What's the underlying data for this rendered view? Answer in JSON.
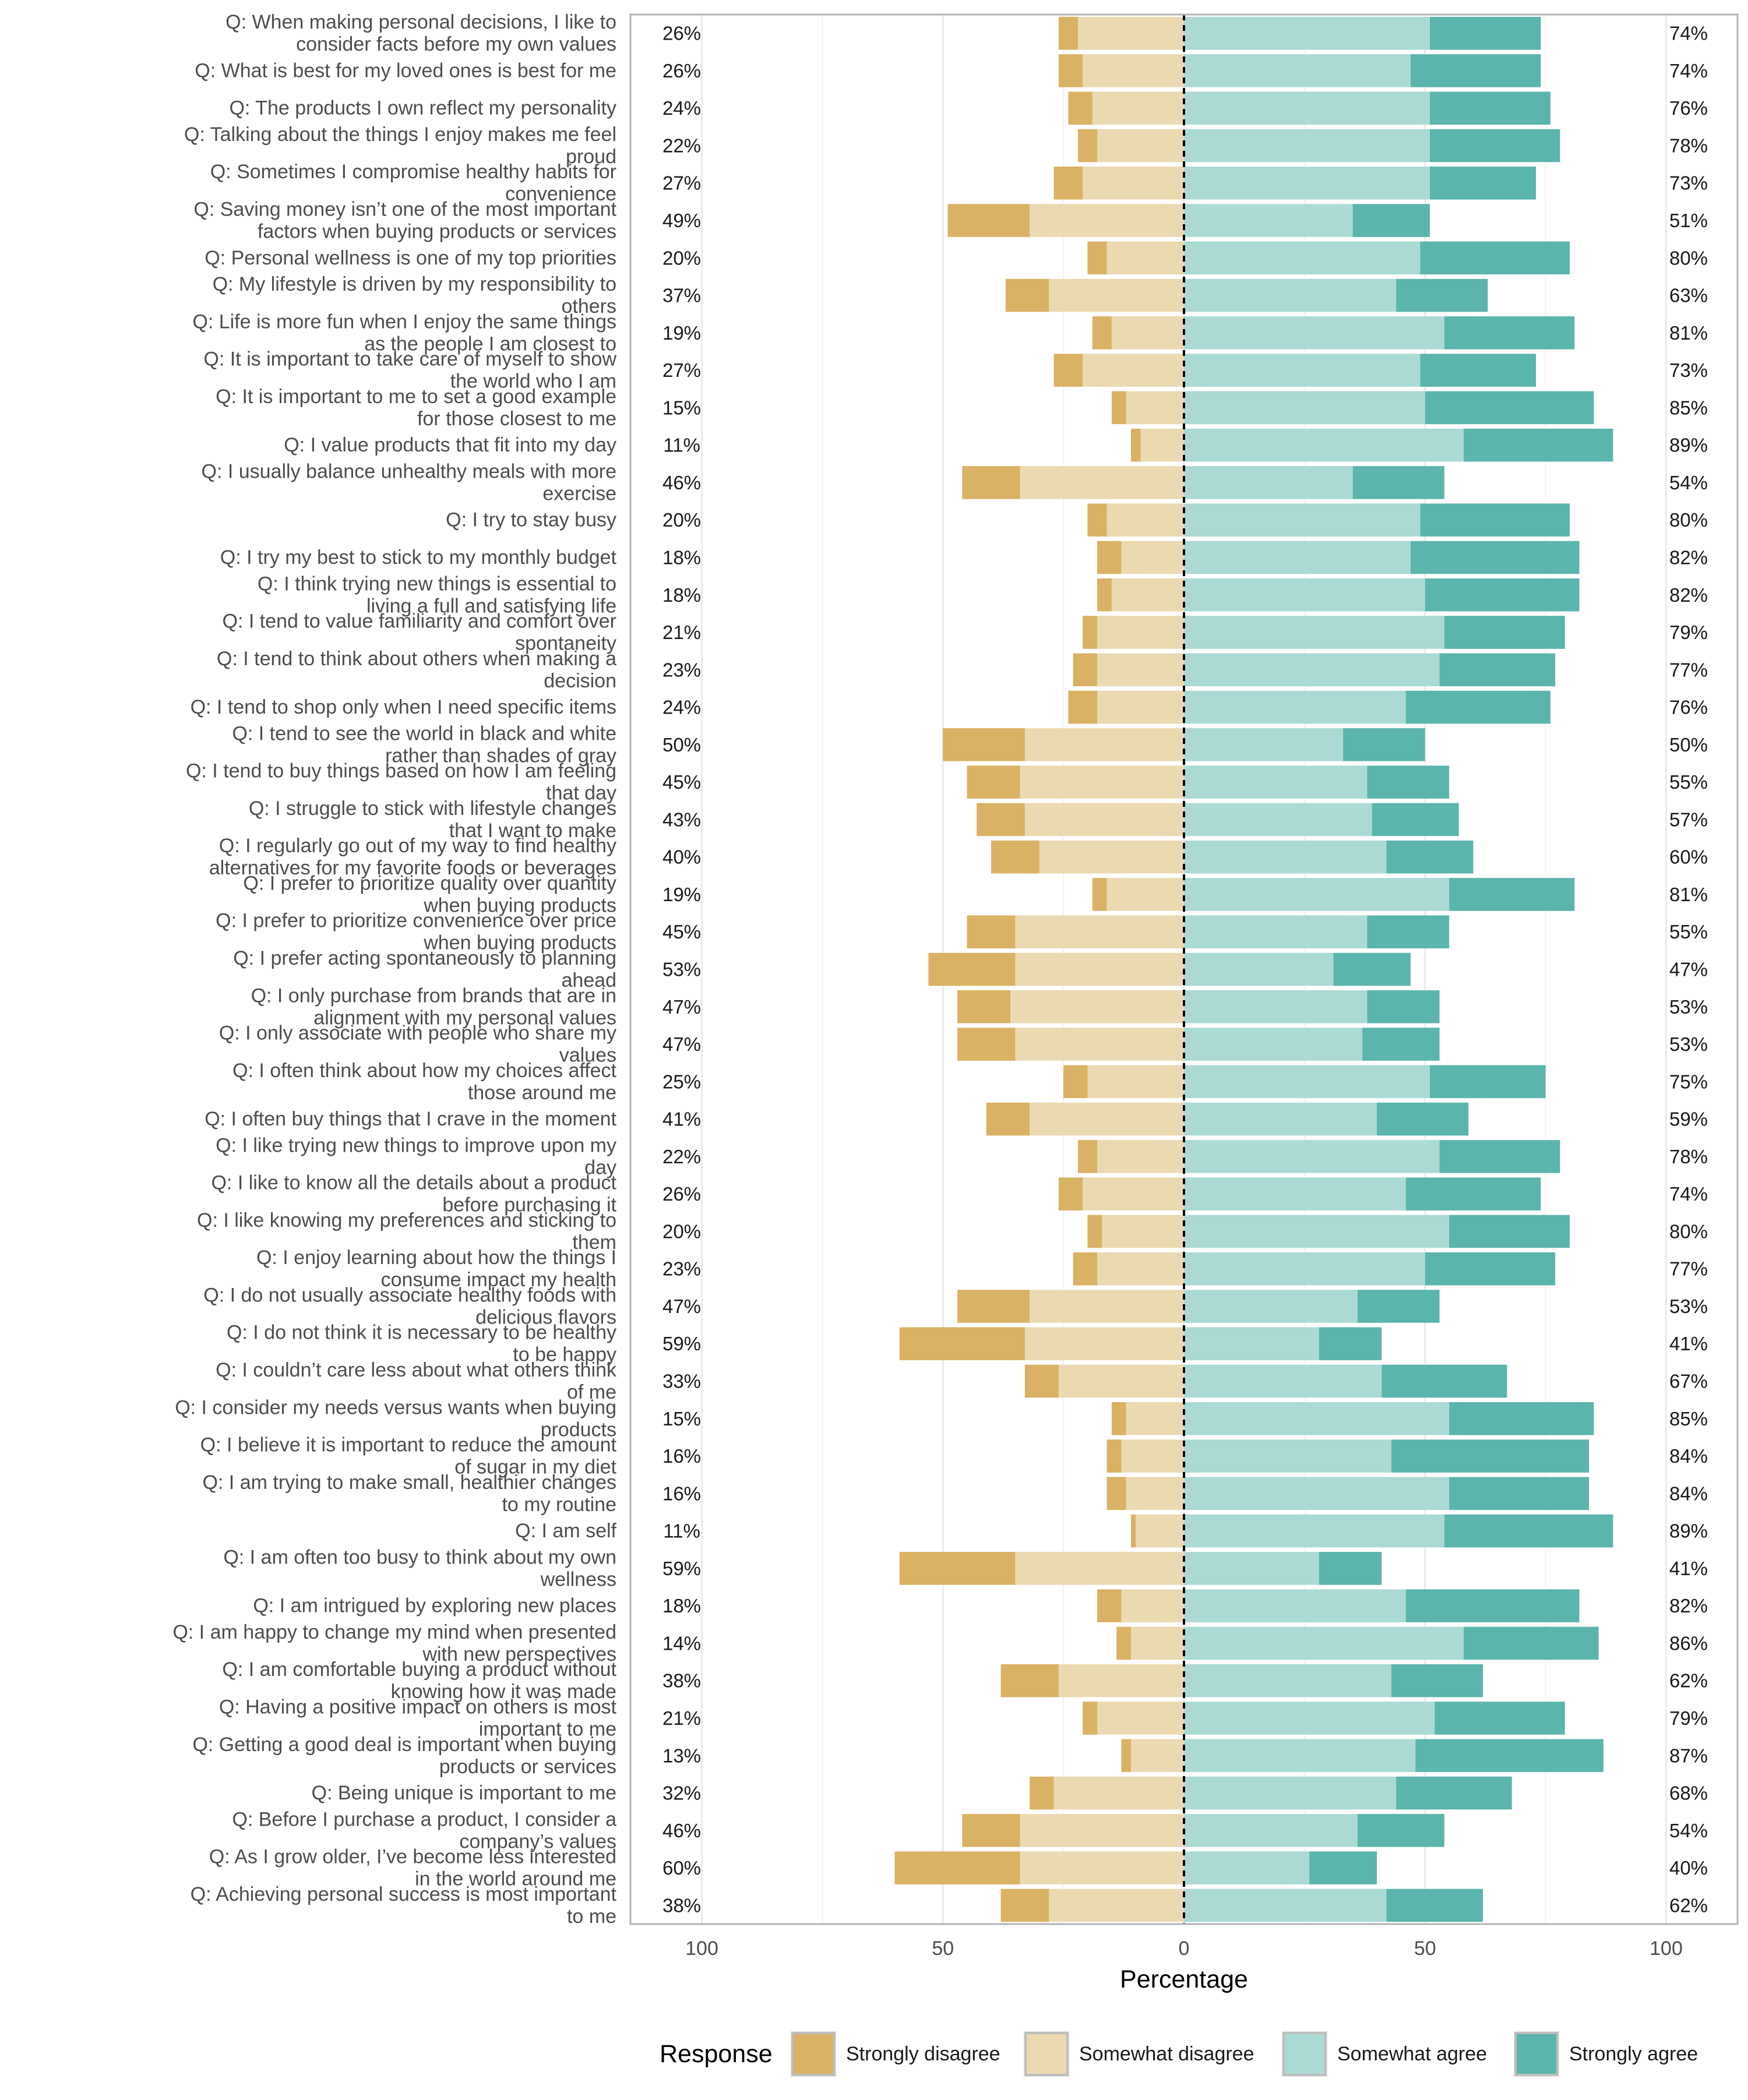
{
  "chart_data": {
    "type": "bar",
    "orientation": "horizontal",
    "stacked": "diverging",
    "title": "",
    "xlabel": "Percentage",
    "ylabel": "",
    "xlim": [
      -100,
      100
    ],
    "x_ticks": [
      -100,
      -50,
      0,
      50,
      100
    ],
    "x_tick_labels": [
      "100",
      "50",
      "0",
      "50",
      "100"
    ],
    "grid": true,
    "legend": {
      "title": "Response",
      "position": "bottom",
      "items": [
        {
          "name": "Strongly disagree",
          "color": "#D9B265"
        },
        {
          "name": "Somewhat disagree",
          "color": "#EBD9B2"
        },
        {
          "name": "Somewhat agree",
          "color": "#ABDAD4"
        },
        {
          "name": "Strongly agree",
          "color": "#5BB5AC"
        }
      ]
    },
    "categories": [
      "Q: When making personal decisions, I like to consider facts before my own values",
      "Q: What is best for my loved ones is best for me",
      "Q: The products I own reflect my personality",
      "Q: Talking about the things I enjoy makes me feel proud",
      "Q: Sometimes I compromise healthy habits for convenience",
      "Q: Saving money isn’t one of the most important factors when buying products or services",
      "Q: Personal wellness is one of my top priorities",
      "Q: My lifestyle is driven by my responsibility to others",
      "Q: Life is more fun when I enjoy the same things as the people I am closest to",
      "Q: It is important to take care of myself to show the world who I am",
      "Q: It is important to me to set a good example for those closest to me",
      "Q: I value products that fit into my day",
      "Q: I usually balance unhealthy meals with more exercise",
      "Q: I try to stay busy",
      "Q: I try my best to stick to my monthly budget",
      "Q: I think trying new things is essential to living a full and satisfying life",
      "Q: I tend to value familiarity and comfort over spontaneity",
      "Q: I tend to think about others when making a decision",
      "Q: I tend to shop only when I need specific items",
      "Q: I tend to see the world in black and white rather than shades of gray",
      "Q: I tend to buy things based on how I am feeling that day",
      "Q: I struggle to stick with lifestyle changes that I want to make",
      "Q: I regularly go out of my way to find healthy alternatives for my favorite foods or beverages",
      "Q: I prefer to prioritize quality over quantity when buying products",
      "Q: I prefer to prioritize convenience over price when buying products",
      "Q: I prefer acting spontaneously to planning ahead",
      "Q: I only purchase from brands that are in alignment with my personal values",
      "Q: I only associate with people who share my values",
      "Q: I often think about how my choices affect those around me",
      "Q: I often buy things that I crave in the moment",
      "Q: I like trying new things to improve upon my day",
      "Q: I like to know all the details about a product before purchasing it",
      "Q: I like knowing my preferences and sticking to them",
      "Q: I enjoy learning about how the things I consume impact my health",
      "Q: I do not usually associate healthy foods with delicious flavors",
      "Q: I do not think it is necessary to be healthy to be happy",
      "Q: I couldn’t care less about what others think of me",
      "Q: I consider my needs versus wants when buying products",
      "Q: I believe it is important to reduce the amount of sugar in my diet",
      "Q: I am trying to make small, healthier changes to my routine",
      "Q: I am self",
      "Q: I am often too busy to think about my own wellness",
      "Q: I am intrigued by exploring new places",
      "Q: I am happy to change my mind when presented with new perspectives",
      "Q: I am comfortable buying a product without knowing how it was made",
      "Q: Having a positive impact on others is most important to me",
      "Q: Getting a good deal is important when buying products or services",
      "Q: Being unique is important to me",
      "Q: Before I purchase a product, I consider a company’s values",
      "Q: As I grow older, I’ve become less interested in the world around me",
      "Q: Achieving personal success is most important to me"
    ],
    "series": [
      {
        "name": "Strongly disagree",
        "values": [
          4,
          5,
          5,
          4,
          6,
          17,
          4,
          9,
          4,
          6,
          3,
          2,
          12,
          4,
          5,
          3,
          3,
          5,
          6,
          17,
          11,
          10,
          10,
          3,
          10,
          18,
          11,
          12,
          5,
          9,
          4,
          5,
          3,
          5,
          15,
          26,
          7,
          3,
          3,
          4,
          1,
          24,
          5,
          3,
          12,
          3,
          2,
          5,
          12,
          26,
          10
        ]
      },
      {
        "name": "Somewhat disagree",
        "values": [
          22,
          21,
          19,
          18,
          21,
          32,
          16,
          28,
          15,
          21,
          12,
          9,
          34,
          16,
          13,
          15,
          18,
          18,
          18,
          33,
          34,
          33,
          30,
          16,
          35,
          35,
          36,
          35,
          20,
          32,
          18,
          21,
          17,
          18,
          32,
          33,
          26,
          12,
          13,
          12,
          10,
          35,
          13,
          11,
          26,
          18,
          11,
          27,
          34,
          34,
          28
        ]
      },
      {
        "name": "Somewhat agree",
        "values": [
          51,
          47,
          51,
          51,
          51,
          35,
          49,
          44,
          54,
          49,
          50,
          58,
          35,
          49,
          47,
          50,
          54,
          53,
          46,
          33,
          38,
          39,
          42,
          55,
          38,
          31,
          38,
          37,
          51,
          40,
          53,
          46,
          55,
          50,
          36,
          28,
          41,
          55,
          43,
          55,
          54,
          28,
          46,
          58,
          43,
          52,
          48,
          44,
          36,
          26,
          42
        ]
      },
      {
        "name": "Strongly agree",
        "values": [
          23,
          27,
          25,
          27,
          22,
          16,
          31,
          19,
          27,
          24,
          35,
          31,
          19,
          31,
          35,
          32,
          25,
          24,
          30,
          17,
          17,
          18,
          18,
          26,
          17,
          16,
          15,
          16,
          24,
          19,
          25,
          28,
          25,
          27,
          17,
          13,
          26,
          30,
          41,
          29,
          35,
          13,
          36,
          28,
          19,
          27,
          39,
          24,
          18,
          14,
          20
        ]
      }
    ],
    "disagree_totals": [
      "26%",
      "26%",
      "24%",
      "22%",
      "27%",
      "49%",
      "20%",
      "37%",
      "19%",
      "27%",
      "15%",
      "11%",
      "46%",
      "20%",
      "18%",
      "18%",
      "21%",
      "23%",
      "24%",
      "50%",
      "45%",
      "43%",
      "40%",
      "19%",
      "45%",
      "53%",
      "47%",
      "47%",
      "25%",
      "41%",
      "22%",
      "26%",
      "20%",
      "23%",
      "47%",
      "59%",
      "33%",
      "15%",
      "16%",
      "16%",
      "11%",
      "59%",
      "18%",
      "14%",
      "38%",
      "21%",
      "13%",
      "32%",
      "46%",
      "60%",
      "38%"
    ],
    "agree_totals": [
      "74%",
      "74%",
      "76%",
      "78%",
      "73%",
      "51%",
      "80%",
      "63%",
      "81%",
      "73%",
      "85%",
      "89%",
      "54%",
      "80%",
      "82%",
      "82%",
      "79%",
      "77%",
      "76%",
      "50%",
      "55%",
      "57%",
      "60%",
      "81%",
      "55%",
      "47%",
      "53%",
      "53%",
      "75%",
      "59%",
      "78%",
      "74%",
      "80%",
      "77%",
      "53%",
      "41%",
      "67%",
      "85%",
      "84%",
      "84%",
      "89%",
      "41%",
      "82%",
      "86%",
      "62%",
      "79%",
      "87%",
      "68%",
      "54%",
      "40%",
      "62%"
    ]
  }
}
